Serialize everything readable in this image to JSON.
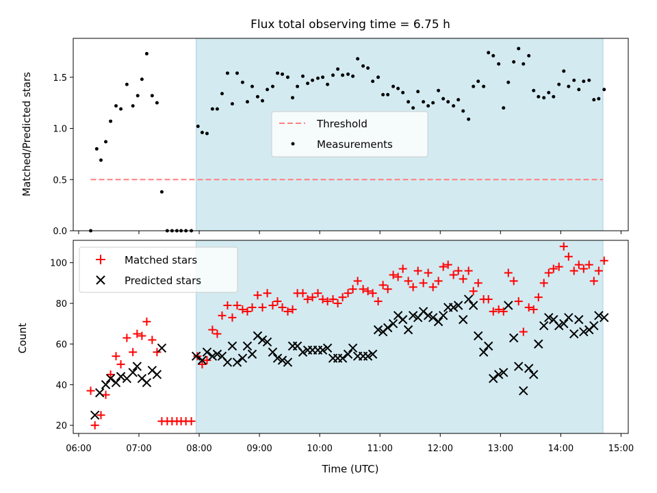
{
  "chart_data": [
    {
      "type": "scatter",
      "title": "Flux total observing time = 6.75 h",
      "xlabel": "",
      "ylabel": "Matched/Predicted stars",
      "xlim": [
        5.91,
        15.12
      ],
      "ylim": [
        0,
        1.88
      ],
      "yticks": [
        0.0,
        0.5,
        1.0,
        1.5
      ],
      "ytick_labels": [
        "0.0",
        "0.5",
        "1.0",
        "1.5"
      ],
      "shaded_span": {
        "x0": 7.95,
        "x1": 14.7,
        "color": "#d3eaf1"
      },
      "threshold": {
        "name": "Threshold",
        "value": 0.5,
        "x0": 6.2,
        "x1": 14.7,
        "color": "#ff7f7f"
      },
      "legend": {
        "position": "center",
        "entries": [
          "Threshold",
          "Measurements"
        ]
      },
      "series": [
        {
          "name": "Measurements",
          "color": "#000000",
          "x": [
            6.2,
            6.3,
            6.37,
            6.45,
            6.53,
            6.62,
            6.7,
            6.8,
            6.9,
            6.98,
            7.05,
            7.13,
            7.22,
            7.3,
            7.38,
            7.47,
            7.55,
            7.63,
            7.7,
            7.78,
            7.87,
            7.98,
            8.05,
            8.13,
            8.22,
            8.3,
            8.38,
            8.47,
            8.55,
            8.63,
            8.72,
            8.8,
            8.88,
            8.97,
            9.05,
            9.13,
            9.22,
            9.3,
            9.38,
            9.47,
            9.55,
            9.63,
            9.72,
            9.8,
            9.88,
            9.97,
            10.05,
            10.13,
            10.22,
            10.3,
            10.38,
            10.47,
            10.55,
            10.63,
            10.72,
            10.8,
            10.88,
            10.97,
            11.05,
            11.13,
            11.22,
            11.3,
            11.38,
            11.47,
            11.55,
            11.63,
            11.72,
            11.8,
            11.88,
            11.97,
            12.05,
            12.13,
            12.22,
            12.3,
            12.38,
            12.47,
            12.55,
            12.63,
            12.72,
            12.8,
            12.88,
            12.97,
            13.05,
            13.13,
            13.22,
            13.3,
            13.38,
            13.47,
            13.55,
            13.63,
            13.72,
            13.8,
            13.88,
            13.97,
            14.05,
            14.13,
            14.22,
            14.3,
            14.38,
            14.47,
            14.55,
            14.63,
            14.72
          ],
          "y": [
            0.0,
            0.8,
            0.69,
            0.87,
            1.07,
            1.22,
            1.19,
            1.43,
            1.22,
            1.32,
            1.48,
            1.73,
            1.32,
            1.25,
            0.38,
            0.0,
            0.0,
            0.0,
            0.0,
            0.0,
            0.0,
            1.02,
            0.96,
            0.95,
            1.19,
            1.19,
            1.34,
            1.54,
            1.24,
            1.54,
            1.45,
            1.26,
            1.41,
            1.31,
            1.27,
            1.38,
            1.41,
            1.54,
            1.53,
            1.5,
            1.3,
            1.41,
            1.51,
            1.44,
            1.47,
            1.49,
            1.5,
            1.43,
            1.52,
            1.58,
            1.52,
            1.53,
            1.51,
            1.68,
            1.61,
            1.59,
            1.46,
            1.5,
            1.33,
            1.33,
            1.41,
            1.39,
            1.35,
            1.26,
            1.2,
            1.36,
            1.26,
            1.22,
            1.25,
            1.37,
            1.29,
            1.26,
            1.22,
            1.28,
            1.17,
            1.09,
            1.41,
            1.46,
            1.41,
            1.74,
            1.71,
            1.63,
            1.2,
            1.45,
            1.65,
            1.78,
            1.63,
            1.71,
            1.37,
            1.31,
            1.3,
            1.35,
            1.31,
            1.43,
            1.56,
            1.41,
            1.47,
            1.38,
            1.46,
            1.47,
            1.28,
            1.29,
            1.38
          ]
        }
      ]
    },
    {
      "type": "scatter",
      "title": "",
      "xlabel": "Time (UTC)",
      "ylabel": "Count",
      "xlim": [
        5.91,
        15.12
      ],
      "ylim": [
        16,
        111
      ],
      "xticks": [
        6,
        7,
        8,
        9,
        10,
        11,
        12,
        13,
        14,
        15
      ],
      "xtick_labels": [
        "06:00",
        "07:00",
        "08:00",
        "09:00",
        "10:00",
        "11:00",
        "12:00",
        "13:00",
        "14:00",
        "15:00"
      ],
      "yticks": [
        20,
        40,
        60,
        80,
        100
      ],
      "ytick_labels": [
        "20",
        "40",
        "60",
        "80",
        "100"
      ],
      "shaded_span": {
        "x0": 7.95,
        "x1": 14.7,
        "color": "#d3eaf1"
      },
      "legend": {
        "position": "top-left",
        "entries": [
          "Matched stars",
          "Predicted stars"
        ]
      },
      "series": [
        {
          "name": "Matched stars",
          "marker": "plus",
          "color": "#ff0000",
          "x": [
            6.2,
            6.27,
            6.37,
            6.45,
            6.53,
            6.62,
            6.7,
            6.8,
            6.9,
            6.97,
            7.05,
            7.13,
            7.22,
            7.3,
            7.38,
            7.47,
            7.55,
            7.63,
            7.7,
            7.78,
            7.87,
            7.97,
            8.05,
            8.13,
            8.22,
            8.3,
            8.38,
            8.47,
            8.55,
            8.63,
            8.72,
            8.8,
            8.88,
            8.97,
            9.05,
            9.13,
            9.22,
            9.3,
            9.38,
            9.47,
            9.55,
            9.63,
            9.72,
            9.8,
            9.88,
            9.97,
            10.05,
            10.13,
            10.22,
            10.3,
            10.38,
            10.47,
            10.55,
            10.63,
            10.72,
            10.8,
            10.88,
            10.97,
            11.05,
            11.13,
            11.22,
            11.3,
            11.38,
            11.47,
            11.55,
            11.63,
            11.72,
            11.8,
            11.88,
            11.97,
            12.05,
            12.13,
            12.22,
            12.3,
            12.38,
            12.47,
            12.55,
            12.63,
            12.72,
            12.8,
            12.88,
            12.97,
            13.05,
            13.13,
            13.22,
            13.3,
            13.38,
            13.47,
            13.55,
            13.63,
            13.72,
            13.8,
            13.88,
            13.97,
            14.05,
            14.13,
            14.22,
            14.3,
            14.38,
            14.47,
            14.55,
            14.63,
            14.72
          ],
          "y": [
            37,
            20,
            25,
            35,
            45,
            54,
            50,
            63,
            56,
            65,
            64,
            71,
            62,
            56,
            22,
            22,
            22,
            22,
            22,
            22,
            22,
            54,
            50,
            52,
            67,
            65,
            74,
            79,
            73,
            79,
            77,
            76,
            78,
            84,
            78,
            85,
            79,
            81,
            78,
            76,
            77,
            85,
            85,
            82,
            83,
            85,
            82,
            81,
            82,
            80,
            83,
            85,
            87,
            91,
            87,
            86,
            85,
            81,
            89,
            87,
            94,
            93,
            97,
            91,
            88,
            96,
            90,
            95,
            88,
            91,
            98,
            99,
            94,
            96,
            92,
            96,
            86,
            90,
            82,
            82,
            76,
            77,
            76,
            95,
            91,
            81,
            66,
            78,
            77,
            83,
            90,
            95,
            97,
            98,
            108,
            103,
            96,
            99,
            97,
            99,
            91,
            96,
            101
          ]
        },
        {
          "name": "Predicted stars",
          "marker": "x",
          "color": "#000000",
          "x": [
            6.27,
            6.35,
            6.45,
            6.53,
            6.62,
            6.7,
            6.8,
            6.9,
            6.97,
            7.05,
            7.13,
            7.22,
            7.3,
            7.38,
            7.95,
            8.05,
            8.13,
            8.22,
            8.3,
            8.38,
            8.47,
            8.55,
            8.63,
            8.72,
            8.8,
            8.88,
            8.97,
            9.05,
            9.13,
            9.22,
            9.3,
            9.38,
            9.47,
            9.55,
            9.63,
            9.72,
            9.8,
            9.88,
            9.97,
            10.05,
            10.13,
            10.22,
            10.3,
            10.38,
            10.47,
            10.55,
            10.63,
            10.72,
            10.8,
            10.88,
            10.97,
            11.05,
            11.13,
            11.22,
            11.3,
            11.38,
            11.47,
            11.55,
            11.63,
            11.72,
            11.8,
            11.88,
            11.97,
            12.05,
            12.13,
            12.22,
            12.3,
            12.38,
            12.47,
            12.55,
            12.63,
            12.72,
            12.8,
            12.88,
            12.97,
            13.05,
            13.13,
            13.22,
            13.3,
            13.38,
            13.47,
            13.55,
            13.63,
            13.72,
            13.8,
            13.88,
            13.97,
            14.05,
            14.13,
            14.22,
            14.3,
            14.38,
            14.47,
            14.55,
            14.63,
            14.72
          ],
          "y": [
            25,
            36,
            40,
            43,
            41,
            44,
            43,
            46,
            49,
            43,
            41,
            47,
            45,
            58,
            54,
            52,
            56,
            54,
            55,
            54,
            51,
            59,
            51,
            53,
            59,
            55,
            64,
            62,
            61,
            56,
            53,
            52,
            51,
            59,
            59,
            56,
            57,
            57,
            57,
            57,
            58,
            53,
            53,
            53,
            55,
            58,
            54,
            54,
            54,
            55,
            67,
            66,
            68,
            70,
            74,
            72,
            67,
            74,
            73,
            76,
            74,
            73,
            71,
            74,
            78,
            78,
            79,
            72,
            82,
            79,
            64,
            56,
            59,
            43,
            45,
            46,
            79,
            63,
            49,
            37,
            48,
            45,
            60,
            69,
            73,
            72,
            69,
            70,
            73,
            65,
            72,
            66,
            67,
            69,
            74,
            73
          ]
        }
      ]
    }
  ]
}
